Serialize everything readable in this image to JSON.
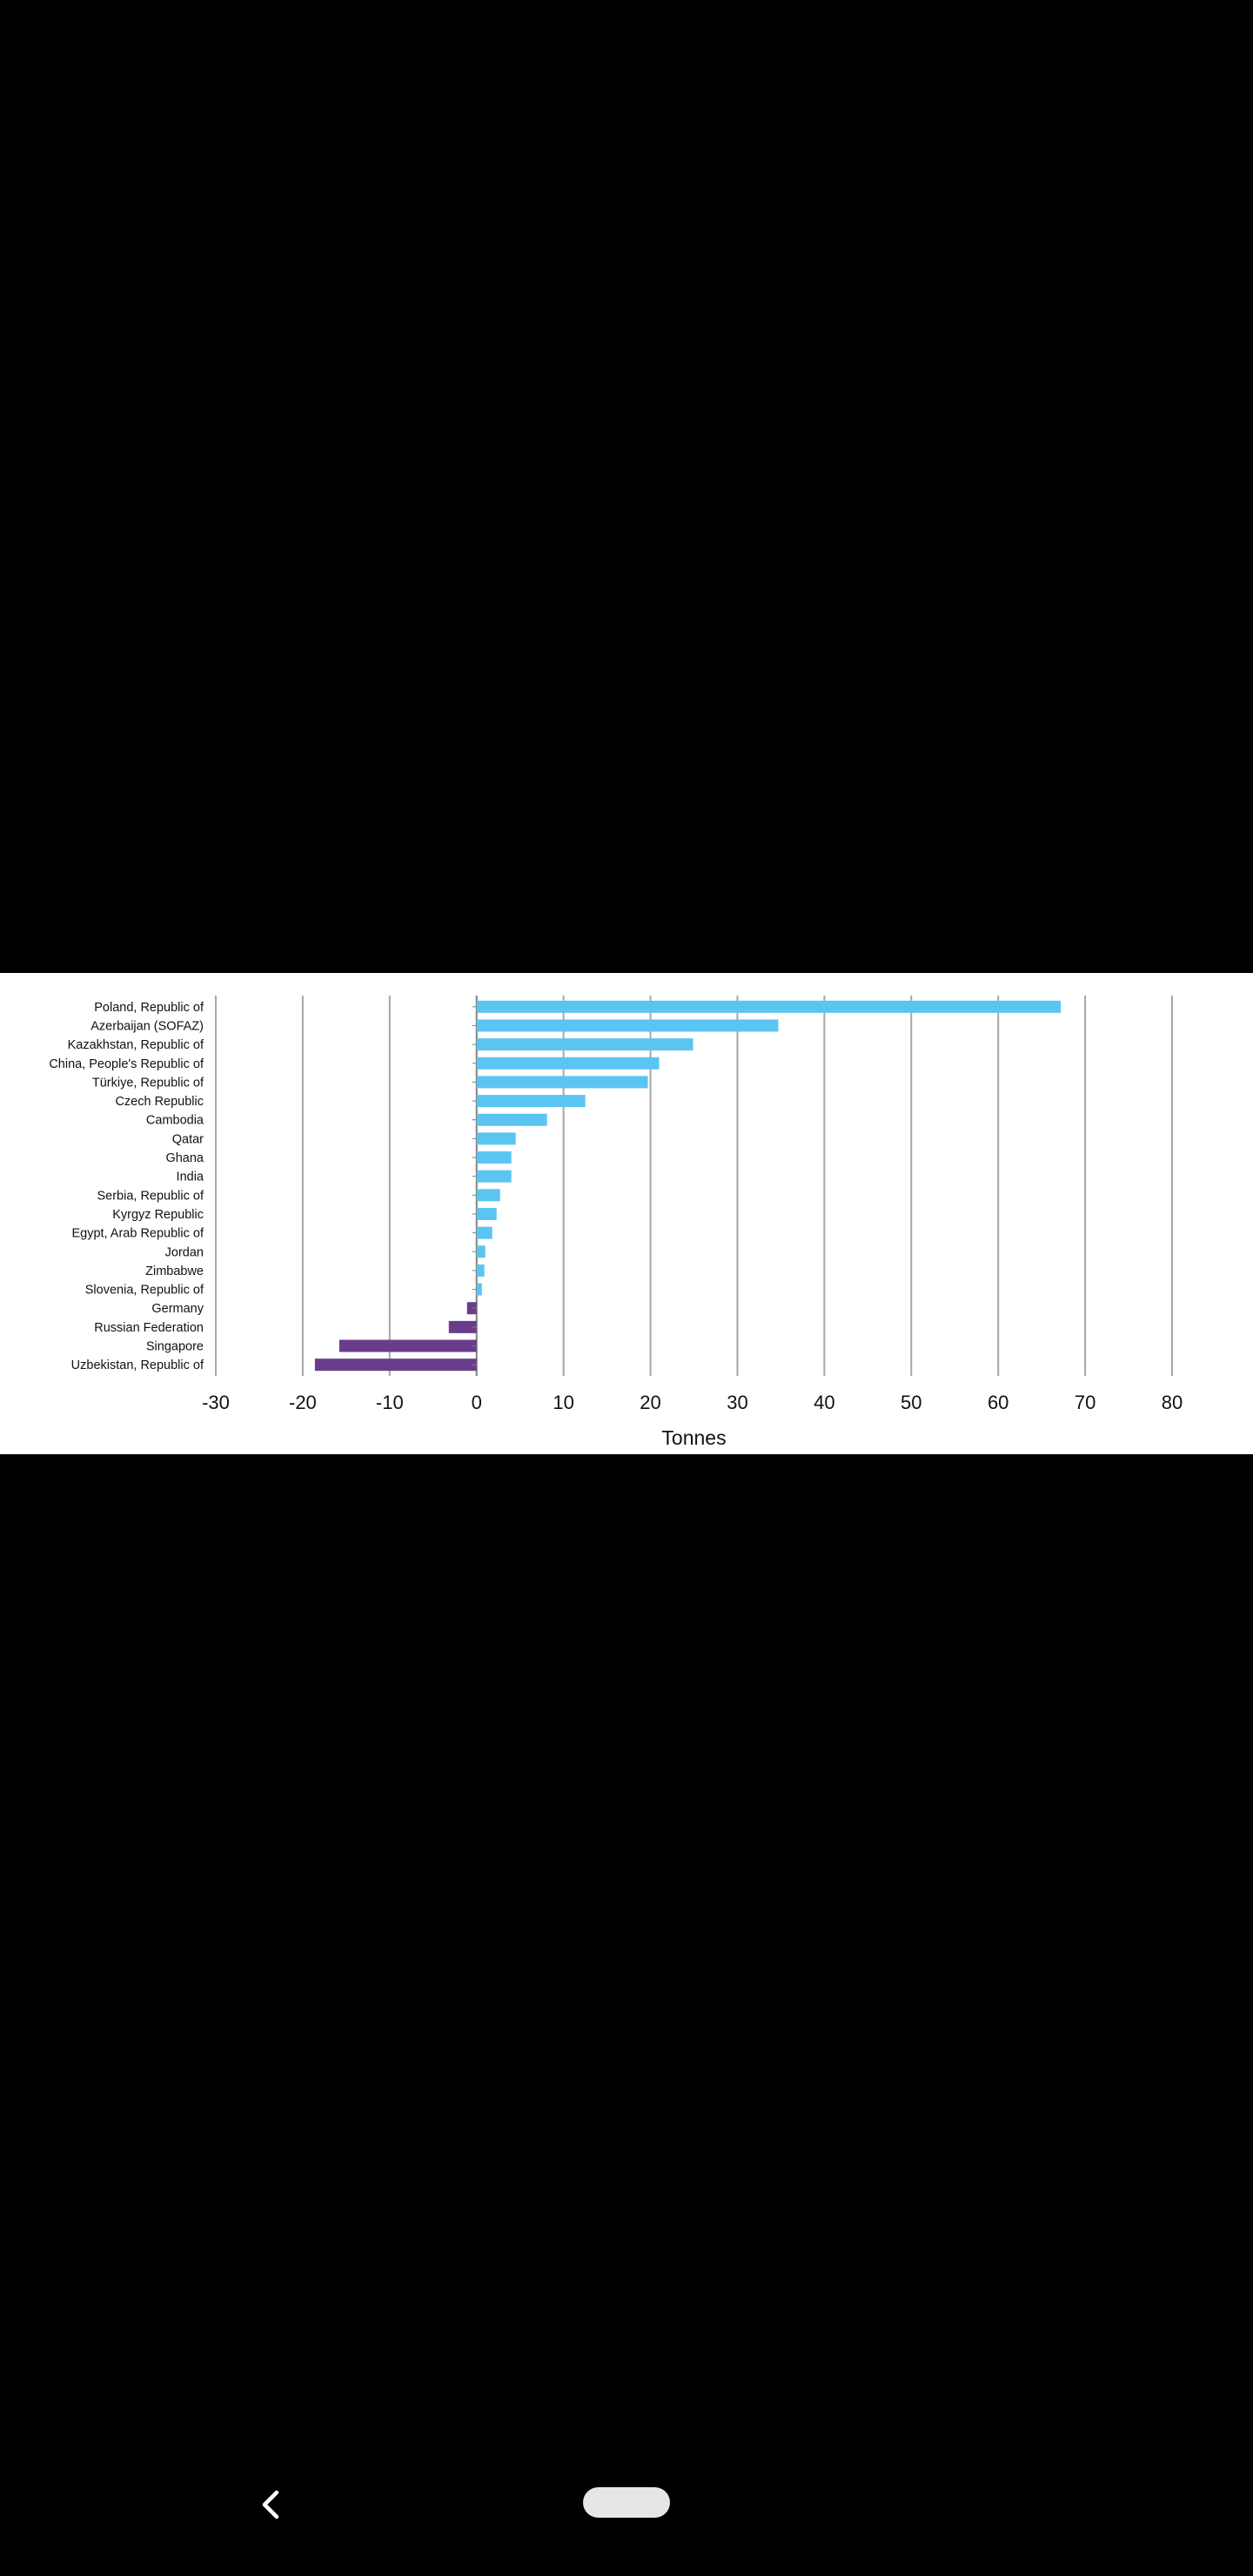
{
  "chart_data": {
    "type": "bar",
    "orientation": "horizontal",
    "categories": [
      "Poland, Republic of",
      "Azerbaijan (SOFAZ)",
      "Kazakhstan, Republic of",
      "China, People's Republic of",
      "Türkiye, Republic of",
      "Czech Republic",
      "Cambodia",
      "Qatar",
      "Ghana",
      "India",
      "Serbia, Republic of",
      "Kyrgyz Republic",
      "Egypt, Arab Republic of",
      "Jordan",
      "Zimbabwe",
      "Slovenia, Republic of",
      "Germany",
      "Russian Federation",
      "Singapore",
      "Uzbekistan, Republic of"
    ],
    "values": [
      67.2,
      34.7,
      24.9,
      21.0,
      19.7,
      12.5,
      8.1,
      4.5,
      4.0,
      4.0,
      2.7,
      2.3,
      1.8,
      1.0,
      0.9,
      0.6,
      -1.1,
      -3.2,
      -15.8,
      -18.6
    ],
    "xlabel": "Tonnes",
    "ylabel": "",
    "xlim": [
      -30,
      80
    ],
    "xticks": [
      -30,
      -20,
      -10,
      0,
      10,
      20,
      30,
      40,
      50,
      60,
      70,
      80
    ],
    "grid": true,
    "colors": {
      "positive": "#5bc5f2",
      "negative": "#6a3d8c",
      "grid": "#a6a6a6",
      "axis": "#808080"
    }
  },
  "nav": {
    "back_icon": "chevron-left-icon",
    "home_icon": "home-pill-icon"
  }
}
